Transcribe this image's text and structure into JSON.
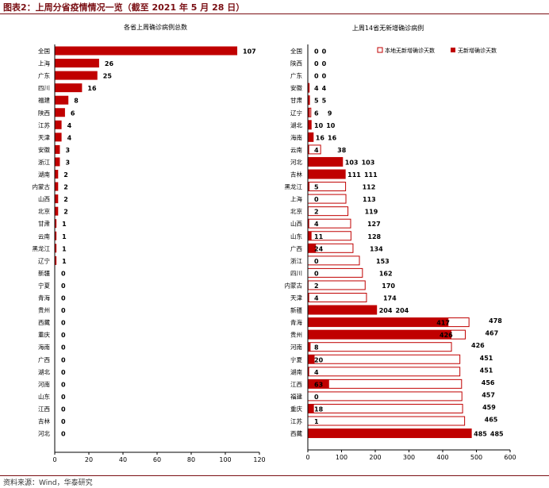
{
  "header": {
    "title": "图表2：上周分省疫情情况一览（截至 2021 年 5 月 28 日）"
  },
  "footer": {
    "source": "资料来源：Wind，华泰研究"
  },
  "colors": {
    "bar": "#c00000",
    "title_red": "#7a0f14",
    "axis": "#000000"
  },
  "chart_data": [
    {
      "type": "bar",
      "orientation": "horizontal",
      "title": "各省上周确诊病例总数",
      "categories": [
        "全国",
        "上海",
        "广东",
        "四川",
        "福建",
        "陕西",
        "江苏",
        "天津",
        "安徽",
        "浙江",
        "湖南",
        "内蒙古",
        "山西",
        "北京",
        "甘肃",
        "云南",
        "黑龙江",
        "辽宁",
        "新疆",
        "宁夏",
        "青海",
        "贵州",
        "西藏",
        "重庆",
        "海南",
        "广西",
        "湖北",
        "河南",
        "山东",
        "江西",
        "吉林",
        "河北"
      ],
      "values": [
        107,
        26,
        25,
        16,
        8,
        6,
        4,
        4,
        3,
        3,
        2,
        2,
        2,
        2,
        1,
        1,
        1,
        1,
        0,
        0,
        0,
        0,
        0,
        0,
        0,
        0,
        0,
        0,
        0,
        0,
        0,
        0
      ],
      "xlim": [
        0,
        120
      ],
      "xticks": [
        0,
        20,
        40,
        60,
        80,
        100,
        120
      ]
    },
    {
      "type": "bar",
      "orientation": "horizontal",
      "title": "上周14省无新增确诊病例",
      "categories": [
        "全国",
        "陕西",
        "广东",
        "安徽",
        "甘肃",
        "辽宁",
        "湖北",
        "海南",
        "云南",
        "河北",
        "吉林",
        "黑龙江",
        "上海",
        "北京",
        "山西",
        "山东",
        "广西",
        "浙江",
        "四川",
        "内蒙古",
        "天津",
        "新疆",
        "青海",
        "贵州",
        "河南",
        "宁夏",
        "湖南",
        "江西",
        "福建",
        "重庆",
        "江苏",
        "西藏"
      ],
      "series": [
        {
          "name": "本地无新增确诊天数",
          "values": [
            0,
            0,
            0,
            4,
            5,
            9,
            10,
            16,
            38,
            103,
            111,
            112,
            113,
            119,
            127,
            128,
            134,
            153,
            162,
            170,
            174,
            204,
            478,
            467,
            426,
            451,
            451,
            456,
            457,
            459,
            465,
            485
          ]
        },
        {
          "name": "无新增确诊天数",
          "values": [
            0,
            0,
            0,
            4,
            5,
            6,
            10,
            16,
            4,
            103,
            111,
            5,
            0,
            2,
            4,
            11,
            24,
            0,
            0,
            2,
            4,
            204,
            417,
            426,
            8,
            20,
            4,
            63,
            0,
            18,
            1,
            485
          ]
        }
      ],
      "xlim": [
        0,
        600
      ],
      "xticks": [
        0,
        100,
        200,
        300,
        400,
        500,
        600
      ],
      "legend_position": "top-right"
    }
  ]
}
